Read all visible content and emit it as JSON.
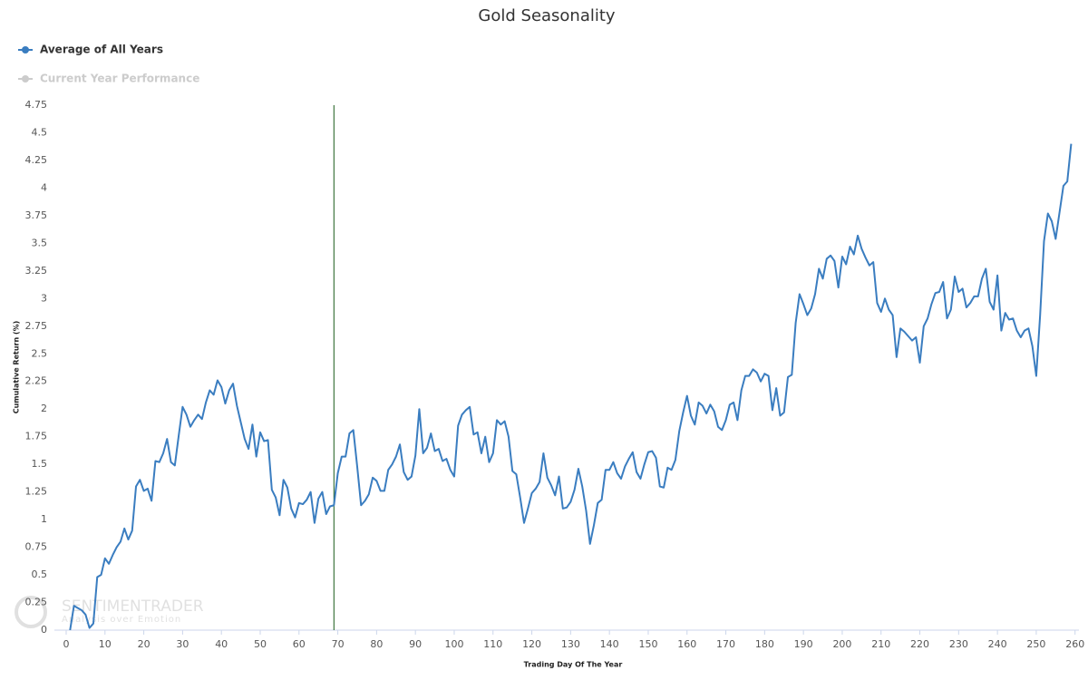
{
  "chart_data": {
    "type": "line",
    "title": "Gold Seasonality",
    "x_label": "Trading Day Of The Year",
    "y_label": "Cumulative Return (%)",
    "watermark": [
      "SENTIMENTRADER",
      "Analysis over Emotion"
    ],
    "x": [
      1,
      2,
      3,
      4,
      5,
      6,
      7,
      8,
      9,
      10,
      11,
      12,
      13,
      14,
      15,
      16,
      17,
      18,
      19,
      20,
      21,
      22,
      23,
      24,
      25,
      26,
      27,
      28,
      29,
      30,
      31,
      32,
      33,
      34,
      35,
      36,
      37,
      38,
      39,
      40,
      41,
      42,
      43,
      44,
      45,
      46,
      47,
      48,
      49,
      50,
      51,
      52,
      53,
      54,
      55,
      56,
      57,
      58,
      59,
      60,
      61,
      62,
      63,
      64,
      65,
      66,
      67,
      68,
      69,
      70,
      71,
      72,
      73,
      74,
      75,
      76,
      77,
      78,
      79,
      80,
      81,
      82,
      83,
      84,
      85,
      86,
      87,
      88,
      89,
      90,
      91,
      92,
      93,
      94,
      95,
      96,
      97,
      98,
      99,
      100,
      101,
      102,
      103,
      104,
      105,
      106,
      107,
      108,
      109,
      110,
      111,
      112,
      113,
      114,
      115,
      116,
      117,
      118,
      119,
      120,
      121,
      122,
      123,
      124,
      125,
      126,
      127,
      128,
      129,
      130,
      131,
      132,
      133,
      134,
      135,
      136,
      137,
      138,
      139,
      140,
      141,
      142,
      143,
      144,
      145,
      146,
      147,
      148,
      149,
      150,
      151,
      152,
      153,
      154,
      155,
      156,
      157,
      158,
      159,
      160,
      161,
      162,
      163,
      164,
      165,
      166,
      167,
      168,
      169,
      170,
      171,
      172,
      173,
      174,
      175,
      176,
      177,
      178,
      179,
      180,
      181,
      182,
      183,
      184,
      185,
      186,
      187,
      188,
      189,
      190,
      191,
      192,
      193,
      194,
      195,
      196,
      197,
      198,
      199,
      200,
      201,
      202,
      203,
      204,
      205,
      206,
      207,
      208,
      209,
      210,
      211,
      212,
      213,
      214,
      215,
      216,
      217,
      218,
      219,
      220,
      221,
      222,
      223,
      224,
      225,
      226,
      227,
      228,
      229,
      230,
      231,
      232,
      233,
      234,
      235,
      236,
      237,
      238,
      239,
      240,
      241,
      242,
      243,
      244,
      245,
      246,
      247,
      248,
      249,
      250,
      251,
      252,
      253,
      254,
      255,
      256,
      257,
      258,
      259
    ],
    "series": [
      {
        "name": "Average of All Years",
        "color": "#3a7dc0",
        "visible": true,
        "values": [
          0,
          0.22,
          0.2,
          0.18,
          0.14,
          0.02,
          0.06,
          0.48,
          0.5,
          0.65,
          0.6,
          0.68,
          0.75,
          0.8,
          0.92,
          0.82,
          0.9,
          1.3,
          1.36,
          1.26,
          1.28,
          1.17,
          1.53,
          1.52,
          1.6,
          1.73,
          1.52,
          1.49,
          1.76,
          2.02,
          1.95,
          1.84,
          1.9,
          1.95,
          1.91,
          2.06,
          2.17,
          2.13,
          2.26,
          2.2,
          2.05,
          2.17,
          2.23,
          2.03,
          1.88,
          1.73,
          1.64,
          1.86,
          1.57,
          1.79,
          1.71,
          1.72,
          1.27,
          1.2,
          1.04,
          1.36,
          1.29,
          1.1,
          1.02,
          1.15,
          1.14,
          1.18,
          1.25,
          0.97,
          1.19,
          1.25,
          1.05,
          1.12,
          1.13,
          1.42,
          1.57,
          1.57,
          1.78,
          1.81,
          1.48,
          1.13,
          1.17,
          1.23,
          1.38,
          1.35,
          1.26,
          1.26,
          1.45,
          1.5,
          1.57,
          1.68,
          1.43,
          1.36,
          1.39,
          1.58,
          2.0,
          1.6,
          1.65,
          1.78,
          1.62,
          1.64,
          1.53,
          1.55,
          1.45,
          1.39,
          1.85,
          1.95,
          1.99,
          2.02,
          1.77,
          1.79,
          1.6,
          1.75,
          1.52,
          1.6,
          1.9,
          1.86,
          1.89,
          1.75,
          1.44,
          1.41,
          1.2,
          0.97,
          1.1,
          1.24,
          1.28,
          1.34,
          1.6,
          1.38,
          1.31,
          1.22,
          1.39,
          1.1,
          1.11,
          1.16,
          1.27,
          1.46,
          1.3,
          1.08,
          0.78,
          0.95,
          1.15,
          1.18,
          1.45,
          1.45,
          1.52,
          1.42,
          1.37,
          1.48,
          1.55,
          1.61,
          1.43,
          1.37,
          1.5,
          1.61,
          1.62,
          1.56,
          1.3,
          1.29,
          1.47,
          1.45,
          1.54,
          1.8,
          1.97,
          2.12,
          1.94,
          1.86,
          2.06,
          2.03,
          1.96,
          2.04,
          1.98,
          1.84,
          1.81,
          1.9,
          2.04,
          2.06,
          1.9,
          2.17,
          2.3,
          2.3,
          2.36,
          2.33,
          2.25,
          2.32,
          2.3,
          1.99,
          2.19,
          1.94,
          1.97,
          2.29,
          2.31,
          2.78,
          3.04,
          2.95,
          2.85,
          2.91,
          3.04,
          3.27,
          3.18,
          3.36,
          3.39,
          3.34,
          3.1,
          3.38,
          3.31,
          3.47,
          3.4,
          3.57,
          3.45,
          3.37,
          3.3,
          3.33,
          2.96,
          2.88,
          3.0,
          2.9,
          2.85,
          2.47,
          2.73,
          2.7,
          2.66,
          2.62,
          2.65,
          2.42,
          2.75,
          2.82,
          2.95,
          3.05,
          3.06,
          3.15,
          2.82,
          2.9,
          3.2,
          3.06,
          3.09,
          2.92,
          2.96,
          3.02,
          3.02,
          3.18,
          3.27,
          2.97,
          2.9,
          3.21,
          2.71,
          2.87,
          2.81,
          2.82,
          2.71,
          2.65,
          2.71,
          2.73,
          2.57,
          2.3,
          2.85,
          3.52,
          3.77,
          3.7,
          3.54,
          3.78,
          4.02,
          4.06,
          4.4
        ]
      },
      {
        "name": "Current Year Performance",
        "color": "#cccccc",
        "visible": false
      }
    ],
    "plot_line": {
      "x": 69,
      "color": "#1a5c1a"
    },
    "xlim": [
      0,
      261
    ],
    "ylim": [
      0,
      4.75
    ],
    "xticks": [
      0,
      10,
      20,
      30,
      40,
      50,
      60,
      70,
      80,
      90,
      100,
      110,
      120,
      130,
      140,
      150,
      160,
      170,
      180,
      190,
      200,
      210,
      220,
      230,
      240,
      250,
      260
    ],
    "yticks": [
      0,
      0.25,
      0.5,
      0.75,
      1,
      1.25,
      1.5,
      1.75,
      2,
      2.25,
      2.5,
      2.75,
      3,
      3.25,
      3.5,
      3.75,
      4,
      4.25,
      4.5,
      4.75
    ],
    "grid": false
  }
}
